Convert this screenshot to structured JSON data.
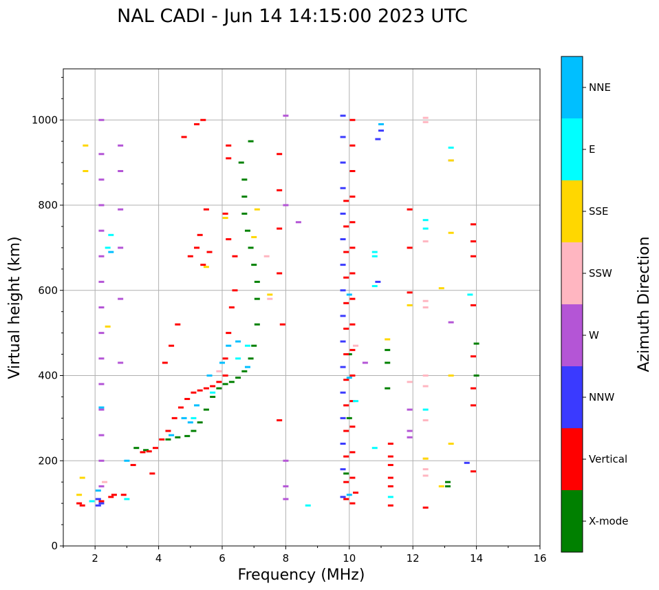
{
  "chart_data": {
    "type": "scatter",
    "title": "NAL CADI - Jun 14 14:15:00 2023 UTC",
    "xlabel": "Frequency (MHz)",
    "ylabel": "Virtual height (km)",
    "xlim": [
      1,
      16
    ],
    "ylim": [
      0,
      1120
    ],
    "xticks": [
      2,
      4,
      6,
      8,
      10,
      12,
      14,
      16
    ],
    "yticks": [
      0,
      200,
      400,
      600,
      800,
      1000
    ],
    "grid": true,
    "colorbar": {
      "label": "Azimuth Direction",
      "categories": [
        {
          "name": "X-mode",
          "color": "#008000"
        },
        {
          "name": "Vertical",
          "color": "#ff0000"
        },
        {
          "name": "NNW",
          "color": "#3a3aff"
        },
        {
          "name": "W",
          "color": "#b455d6"
        },
        {
          "name": "SSW",
          "color": "#ffb6c1"
        },
        {
          "name": "SSE",
          "color": "#ffd700"
        },
        {
          "name": "E",
          "color": "#00ffff"
        },
        {
          "name": "NNE",
          "color": "#00bfff"
        }
      ]
    },
    "series": [
      {
        "name": "X-mode",
        "points": [
          [
            3.3,
            230
          ],
          [
            3.6,
            225
          ],
          [
            4.3,
            250
          ],
          [
            4.6,
            255
          ],
          [
            4.9,
            258
          ],
          [
            5.1,
            270
          ],
          [
            5.3,
            290
          ],
          [
            5.5,
            320
          ],
          [
            5.7,
            350
          ],
          [
            5.9,
            370
          ],
          [
            6.1,
            380
          ],
          [
            6.3,
            385
          ],
          [
            6.5,
            395
          ],
          [
            6.7,
            410
          ],
          [
            6.9,
            440
          ],
          [
            7.0,
            470
          ],
          [
            7.1,
            520
          ],
          [
            7.1,
            580
          ],
          [
            7.1,
            620
          ],
          [
            7.0,
            660
          ],
          [
            6.9,
            700
          ],
          [
            6.8,
            740
          ],
          [
            6.7,
            780
          ],
          [
            6.7,
            820
          ],
          [
            6.7,
            860
          ],
          [
            6.6,
            900
          ],
          [
            6.9,
            950
          ],
          [
            9.9,
            170
          ],
          [
            10.0,
            300
          ],
          [
            10.0,
            450
          ],
          [
            11.2,
            370
          ],
          [
            11.2,
            430
          ],
          [
            11.2,
            460
          ],
          [
            13.1,
            140
          ],
          [
            13.1,
            150
          ],
          [
            14.0,
            400
          ],
          [
            14.0,
            475
          ]
        ]
      },
      {
        "name": "Vertical",
        "points": [
          [
            1.5,
            100
          ],
          [
            1.6,
            95
          ],
          [
            2.2,
            105
          ],
          [
            2.5,
            115
          ],
          [
            2.6,
            120
          ],
          [
            2.9,
            120
          ],
          [
            3.2,
            190
          ],
          [
            3.5,
            220
          ],
          [
            3.7,
            222
          ],
          [
            3.9,
            230
          ],
          [
            4.1,
            250
          ],
          [
            4.3,
            270
          ],
          [
            4.5,
            300
          ],
          [
            4.7,
            325
          ],
          [
            4.9,
            345
          ],
          [
            5.1,
            360
          ],
          [
            5.3,
            365
          ],
          [
            5.5,
            370
          ],
          [
            5.7,
            375
          ],
          [
            5.9,
            385
          ],
          [
            6.1,
            400
          ],
          [
            6.1,
            440
          ],
          [
            6.2,
            500
          ],
          [
            6.3,
            560
          ],
          [
            6.4,
            600
          ],
          [
            6.4,
            680
          ],
          [
            6.2,
            720
          ],
          [
            6.1,
            780
          ],
          [
            5.5,
            790
          ],
          [
            5.3,
            730
          ],
          [
            5.2,
            700
          ],
          [
            5.0,
            680
          ],
          [
            5.4,
            660
          ],
          [
            5.6,
            690
          ],
          [
            3.8,
            170
          ],
          [
            4.2,
            430
          ],
          [
            4.4,
            470
          ],
          [
            4.6,
            520
          ],
          [
            4.8,
            960
          ],
          [
            5.2,
            990
          ],
          [
            5.4,
            1000
          ],
          [
            6.2,
            910
          ],
          [
            6.2,
            940
          ],
          [
            7.8,
            920
          ],
          [
            7.8,
            835
          ],
          [
            7.8,
            745
          ],
          [
            7.8,
            640
          ],
          [
            7.9,
            520
          ],
          [
            7.8,
            295
          ],
          [
            9.9,
            110
          ],
          [
            9.9,
            150
          ],
          [
            9.9,
            210
          ],
          [
            9.9,
            270
          ],
          [
            9.9,
            330
          ],
          [
            9.9,
            390
          ],
          [
            9.9,
            450
          ],
          [
            9.9,
            510
          ],
          [
            9.9,
            570
          ],
          [
            9.9,
            630
          ],
          [
            9.9,
            690
          ],
          [
            9.9,
            750
          ],
          [
            9.9,
            810
          ],
          [
            10.1,
            100
          ],
          [
            10.1,
            160
          ],
          [
            10.1,
            220
          ],
          [
            10.1,
            280
          ],
          [
            10.1,
            340
          ],
          [
            10.1,
            400
          ],
          [
            10.1,
            460
          ],
          [
            10.1,
            520
          ],
          [
            10.1,
            580
          ],
          [
            10.1,
            640
          ],
          [
            10.1,
            700
          ],
          [
            10.1,
            760
          ],
          [
            10.1,
            820
          ],
          [
            10.1,
            880
          ],
          [
            10.1,
            940
          ],
          [
            10.1,
            1000
          ],
          [
            10.2,
            125
          ],
          [
            11.3,
            95
          ],
          [
            11.3,
            140
          ],
          [
            11.3,
            160
          ],
          [
            11.3,
            190
          ],
          [
            11.3,
            210
          ],
          [
            11.3,
            240
          ],
          [
            11.9,
            595
          ],
          [
            11.9,
            700
          ],
          [
            11.9,
            790
          ],
          [
            12.4,
            90
          ],
          [
            13.9,
            175
          ],
          [
            13.9,
            330
          ],
          [
            13.9,
            370
          ],
          [
            13.9,
            445
          ],
          [
            13.9,
            565
          ],
          [
            13.9,
            680
          ],
          [
            13.9,
            715
          ],
          [
            13.9,
            755
          ]
        ]
      },
      {
        "name": "NNW",
        "points": [
          [
            2.1,
            95
          ],
          [
            2.1,
            110
          ],
          [
            2.2,
            100
          ],
          [
            9.8,
            115
          ],
          [
            9.8,
            180
          ],
          [
            9.8,
            240
          ],
          [
            9.8,
            300
          ],
          [
            9.8,
            360
          ],
          [
            9.8,
            420
          ],
          [
            9.8,
            480
          ],
          [
            9.8,
            540
          ],
          [
            9.8,
            600
          ],
          [
            9.8,
            660
          ],
          [
            9.8,
            720
          ],
          [
            9.8,
            780
          ],
          [
            9.8,
            840
          ],
          [
            9.8,
            900
          ],
          [
            9.8,
            960
          ],
          [
            9.8,
            1010
          ],
          [
            10.9,
            620
          ],
          [
            10.9,
            955
          ],
          [
            11.0,
            975
          ],
          [
            13.7,
            195
          ],
          [
            13.2,
            905
          ]
        ]
      },
      {
        "name": "W",
        "points": [
          [
            2.2,
            140
          ],
          [
            2.2,
            200
          ],
          [
            2.2,
            260
          ],
          [
            2.2,
            320
          ],
          [
            2.2,
            380
          ],
          [
            2.2,
            440
          ],
          [
            2.2,
            500
          ],
          [
            2.2,
            560
          ],
          [
            2.2,
            620
          ],
          [
            2.2,
            680
          ],
          [
            2.2,
            740
          ],
          [
            2.2,
            800
          ],
          [
            2.2,
            860
          ],
          [
            2.2,
            920
          ],
          [
            2.2,
            1000
          ],
          [
            2.8,
            430
          ],
          [
            2.8,
            580
          ],
          [
            2.8,
            700
          ],
          [
            2.8,
            790
          ],
          [
            2.8,
            880
          ],
          [
            2.8,
            940
          ],
          [
            8.0,
            110
          ],
          [
            8.0,
            140
          ],
          [
            8.0,
            200
          ],
          [
            8.0,
            800
          ],
          [
            8.0,
            1010
          ],
          [
            8.4,
            760
          ],
          [
            10.5,
            430
          ],
          [
            11.9,
            255
          ],
          [
            11.9,
            270
          ],
          [
            11.9,
            320
          ],
          [
            13.2,
            525
          ]
        ]
      },
      {
        "name": "SSW",
        "points": [
          [
            2.3,
            150
          ],
          [
            7.5,
            580
          ],
          [
            10.2,
            470
          ],
          [
            11.9,
            385
          ],
          [
            12.4,
            165
          ],
          [
            12.4,
            180
          ],
          [
            12.4,
            205
          ],
          [
            12.4,
            295
          ],
          [
            12.4,
            375
          ],
          [
            12.4,
            400
          ],
          [
            12.4,
            560
          ],
          [
            12.4,
            575
          ],
          [
            12.4,
            715
          ],
          [
            12.4,
            995
          ],
          [
            12.4,
            1005
          ],
          [
            7.4,
            680
          ],
          [
            5.9,
            410
          ]
        ]
      },
      {
        "name": "SSE",
        "points": [
          [
            1.5,
            120
          ],
          [
            1.6,
            160
          ],
          [
            1.7,
            940
          ],
          [
            1.7,
            880
          ],
          [
            2.4,
            515
          ],
          [
            5.5,
            655
          ],
          [
            6.1,
            770
          ],
          [
            7.0,
            725
          ],
          [
            7.1,
            790
          ],
          [
            7.5,
            590
          ],
          [
            11.2,
            485
          ],
          [
            11.9,
            565
          ],
          [
            12.4,
            205
          ],
          [
            12.9,
            140
          ],
          [
            12.9,
            605
          ],
          [
            13.2,
            240
          ],
          [
            13.2,
            400
          ],
          [
            13.2,
            735
          ],
          [
            13.2,
            905
          ]
        ]
      },
      {
        "name": "E",
        "points": [
          [
            1.9,
            105
          ],
          [
            2.4,
            700
          ],
          [
            2.5,
            730
          ],
          [
            3.0,
            110
          ],
          [
            5.1,
            300
          ],
          [
            5.7,
            360
          ],
          [
            6.5,
            440
          ],
          [
            6.8,
            470
          ],
          [
            8.7,
            95
          ],
          [
            10.2,
            340
          ],
          [
            10.8,
            230
          ],
          [
            10.8,
            610
          ],
          [
            10.8,
            680
          ],
          [
            10.8,
            690
          ],
          [
            11.3,
            115
          ],
          [
            12.4,
            320
          ],
          [
            12.4,
            745
          ],
          [
            12.4,
            765
          ],
          [
            13.2,
            935
          ],
          [
            13.8,
            590
          ]
        ]
      },
      {
        "name": "NNE",
        "points": [
          [
            2.1,
            130
          ],
          [
            2.2,
            325
          ],
          [
            2.5,
            690
          ],
          [
            3.0,
            200
          ],
          [
            4.4,
            260
          ],
          [
            4.8,
            300
          ],
          [
            5.0,
            290
          ],
          [
            5.2,
            330
          ],
          [
            5.6,
            400
          ],
          [
            6.0,
            430
          ],
          [
            6.2,
            470
          ],
          [
            6.5,
            480
          ],
          [
            6.8,
            420
          ],
          [
            10.0,
            120
          ],
          [
            10.0,
            395
          ],
          [
            10.0,
            590
          ],
          [
            11.0,
            990
          ]
        ]
      }
    ]
  }
}
